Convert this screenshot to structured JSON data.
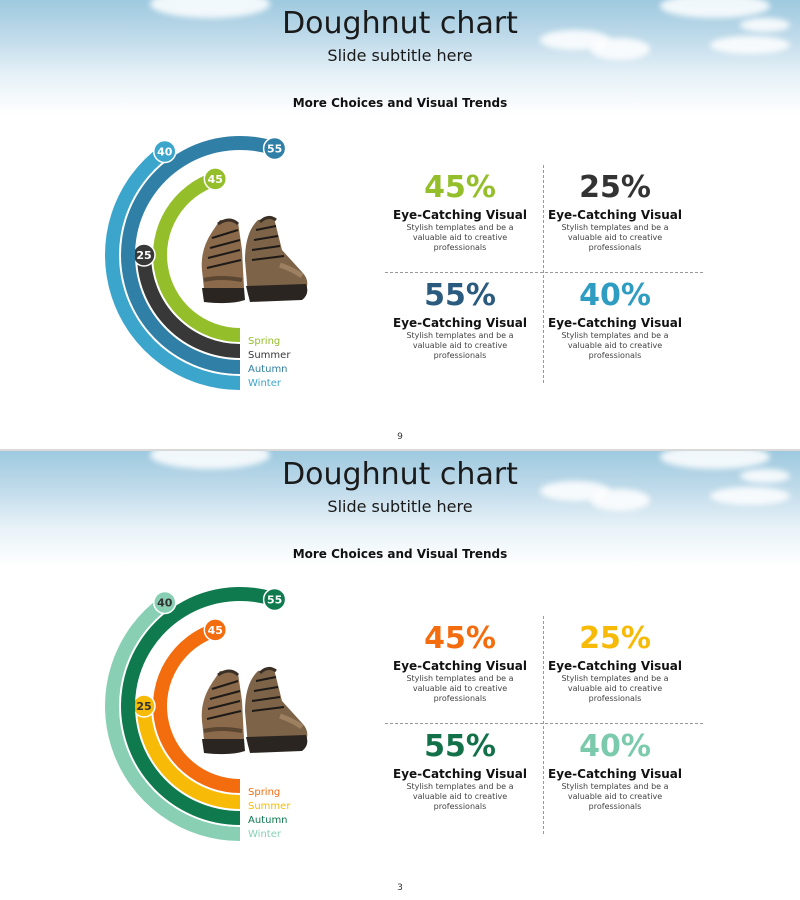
{
  "slides": [
    {
      "title": "Doughnut chart",
      "subtitle": "Slide subtitle here",
      "heading": "More Choices and Visual Trends",
      "page_number": "9",
      "stats": [
        {
          "value": "45%",
          "title": "Eye-Catching Visual",
          "description": "Stylish templates and be a valuable aid to creative professionals",
          "color": "#94bf2a"
        },
        {
          "value": "25%",
          "title": "Eye-Catching Visual",
          "description": "Stylish templates and be a valuable aid to creative professionals",
          "color": "#333333"
        },
        {
          "value": "55%",
          "title": "Eye-Catching Visual",
          "description": "Stylish templates and be a valuable aid to creative professionals",
          "color": "#2a5a7e"
        },
        {
          "value": "40%",
          "title": "Eye-Catching Visual",
          "description": "Stylish templates and be a valuable aid to creative professionals",
          "color": "#2f9dc1"
        }
      ],
      "chart_data": {
        "type": "pie",
        "series": [
          {
            "name": "Spring",
            "value": 45,
            "color": "#94bf2a"
          },
          {
            "name": "Summer",
            "value": 25,
            "color": "#383838"
          },
          {
            "name": "Autumn",
            "value": 55,
            "color": "#2f7fa6"
          },
          {
            "name": "Winter",
            "value": 40,
            "color": "#3ba5cb"
          }
        ]
      }
    },
    {
      "title": "Doughnut chart",
      "subtitle": "Slide subtitle here",
      "heading": "More Choices and Visual Trends",
      "page_number": "3",
      "stats": [
        {
          "value": "45%",
          "title": "Eye-Catching Visual",
          "description": "Stylish templates and be a valuable aid to creative professionals",
          "color": "#f36c0e"
        },
        {
          "value": "25%",
          "title": "Eye-Catching Visual",
          "description": "Stylish templates and be a valuable aid to creative professionals",
          "color": "#f7bb07"
        },
        {
          "value": "55%",
          "title": "Eye-Catching Visual",
          "description": "Stylish templates and be a valuable aid to creative professionals",
          "color": "#127149"
        },
        {
          "value": "40%",
          "title": "Eye-Catching Visual",
          "description": "Stylish templates and be a valuable aid to creative professionals",
          "color": "#7ccaad"
        }
      ],
      "chart_data": {
        "type": "pie",
        "series": [
          {
            "name": "Spring",
            "value": 45,
            "color": "#f36c0e"
          },
          {
            "name": "Summer",
            "value": 25,
            "color": "#f7bb07"
          },
          {
            "name": "Autumn",
            "value": 55,
            "color": "#0e7a4d"
          },
          {
            "name": "Winter",
            "value": 40,
            "color": "#88cfb4"
          }
        ]
      }
    }
  ]
}
